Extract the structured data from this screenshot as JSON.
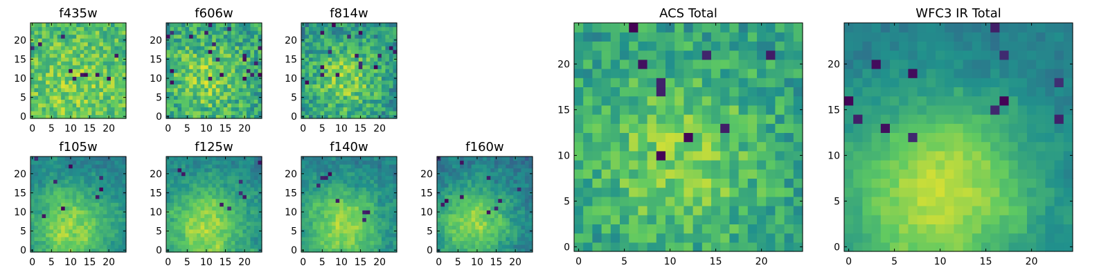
{
  "figure": {
    "colormap": "viridis",
    "colormap_stops": [
      "#440154",
      "#3b528b",
      "#21918c",
      "#5ec962",
      "#fde725"
    ],
    "frame_color": "#000000",
    "background": "#ffffff"
  },
  "chart_data": [
    {
      "type": "heatmap",
      "title": "f435w",
      "grid": [
        25,
        25
      ],
      "xticks": [
        "0",
        "5",
        "10",
        "15",
        "20"
      ],
      "yticks": [
        "0",
        "5",
        "10",
        "15",
        "20"
      ],
      "xlim": [
        -0.5,
        24.5
      ],
      "ylim": [
        -0.5,
        24.5
      ],
      "seed": 11,
      "peak": [
        11,
        8
      ],
      "peak_width": 9,
      "peak_strength": 0.12,
      "base": 0.68,
      "noise": 0.34,
      "dark_pixels": 10
    },
    {
      "type": "heatmap",
      "title": "f606w",
      "grid": [
        25,
        25
      ],
      "xticks": [
        "0",
        "5",
        "10",
        "15",
        "20"
      ],
      "yticks": [
        "0",
        "5",
        "10",
        "15",
        "20"
      ],
      "xlim": [
        -0.5,
        24.5
      ],
      "ylim": [
        -0.5,
        24.5
      ],
      "seed": 23,
      "peak": [
        10,
        10
      ],
      "peak_width": 7,
      "peak_strength": 0.22,
      "base": 0.58,
      "noise": 0.38,
      "dark_pixels": 22
    },
    {
      "type": "heatmap",
      "title": "f814w",
      "grid": [
        25,
        25
      ],
      "xticks": [
        "0",
        "5",
        "10",
        "15",
        "20"
      ],
      "yticks": [
        "0",
        "5",
        "10",
        "15",
        "20"
      ],
      "xlim": [
        -0.5,
        24.5
      ],
      "ylim": [
        -0.5,
        24.5
      ],
      "seed": 37,
      "peak": [
        11,
        10
      ],
      "peak_width": 7,
      "peak_strength": 0.3,
      "base": 0.5,
      "noise": 0.36,
      "dark_pixels": 16
    },
    {
      "type": "heatmap",
      "title": "f105w",
      "grid": [
        25,
        25
      ],
      "xticks": [
        "0",
        "5",
        "10",
        "15",
        "20"
      ],
      "yticks": [
        "0",
        "5",
        "10",
        "15",
        "20"
      ],
      "xlim": [
        -0.5,
        24.5
      ],
      "ylim": [
        -0.5,
        24.5
      ],
      "seed": 41,
      "peak": [
        10,
        6
      ],
      "peak_width": 8,
      "peak_strength": 0.42,
      "base": 0.42,
      "noise": 0.24,
      "dark_pixels": 8
    },
    {
      "type": "heatmap",
      "title": "f125w",
      "grid": [
        25,
        25
      ],
      "xticks": [
        "0",
        "5",
        "10",
        "15",
        "20"
      ],
      "yticks": [
        "0",
        "5",
        "10",
        "15",
        "20"
      ],
      "xlim": [
        -0.5,
        24.5
      ],
      "ylim": [
        -0.5,
        24.5
      ],
      "seed": 53,
      "peak": [
        10,
        6
      ],
      "peak_width": 8,
      "peak_strength": 0.42,
      "base": 0.44,
      "noise": 0.24,
      "dark_pixels": 8
    },
    {
      "type": "heatmap",
      "title": "f140w",
      "grid": [
        25,
        25
      ],
      "xticks": [
        "0",
        "5",
        "10",
        "15",
        "20"
      ],
      "yticks": [
        "0",
        "5",
        "10",
        "15",
        "20"
      ],
      "xlim": [
        -0.5,
        24.5
      ],
      "ylim": [
        -0.5,
        24.5
      ],
      "seed": 67,
      "peak": [
        10,
        6
      ],
      "peak_width": 8,
      "peak_strength": 0.42,
      "base": 0.42,
      "noise": 0.24,
      "dark_pixels": 8
    },
    {
      "type": "heatmap",
      "title": "f160w",
      "grid": [
        25,
        25
      ],
      "xticks": [
        "0",
        "5",
        "10",
        "15",
        "20"
      ],
      "yticks": [
        "0",
        "5",
        "10",
        "15",
        "20"
      ],
      "xlim": [
        -0.5,
        24.5
      ],
      "ylim": [
        -0.5,
        24.5
      ],
      "seed": 79,
      "peak": [
        9,
        7
      ],
      "peak_width": 7,
      "peak_strength": 0.45,
      "base": 0.4,
      "noise": 0.26,
      "dark_pixels": 10
    },
    {
      "type": "heatmap",
      "title": "ACS Total",
      "grid": [
        25,
        25
      ],
      "xticks": [
        "0",
        "5",
        "10",
        "15",
        "20"
      ],
      "yticks": [
        "0",
        "5",
        "10",
        "15",
        "20"
      ],
      "xlim": [
        -0.5,
        24.5
      ],
      "ylim": [
        -0.5,
        24.5
      ],
      "seed": 97,
      "peak": [
        11,
        10
      ],
      "peak_width": 7,
      "peak_strength": 0.25,
      "base": 0.55,
      "noise": 0.3,
      "dark_pixels": 9
    },
    {
      "type": "heatmap",
      "title": "WFC3 IR Total",
      "grid": [
        25,
        25
      ],
      "xticks": [
        "0",
        "5",
        "10",
        "15",
        "20"
      ],
      "yticks": [
        "0",
        "5",
        "10",
        "15",
        "20"
      ],
      "xlim": [
        -0.5,
        24.5
      ],
      "ylim": [
        -0.5,
        24.5
      ],
      "seed": 101,
      "peak": [
        10,
        6
      ],
      "peak_width": 8,
      "peak_strength": 0.5,
      "base": 0.4,
      "noise": 0.16,
      "dark_pixels": 12
    }
  ]
}
